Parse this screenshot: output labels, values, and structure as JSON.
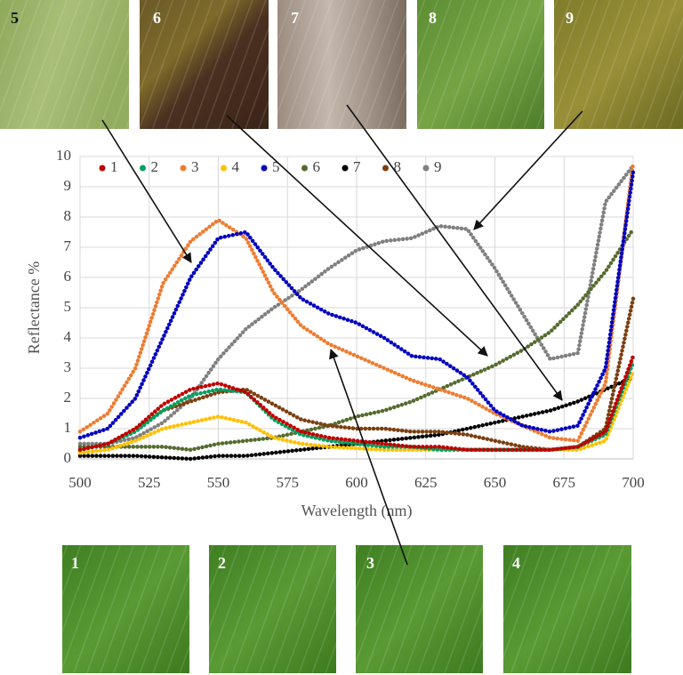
{
  "chart_data": {
    "type": "line",
    "ylabel": "Reflectance %",
    "xlabel": "Wavelength (nm)",
    "x": [
      500,
      510,
      520,
      530,
      540,
      550,
      560,
      570,
      580,
      590,
      600,
      610,
      620,
      630,
      640,
      650,
      660,
      670,
      680,
      690,
      700
    ],
    "xlim": [
      500,
      700
    ],
    "xticks": [
      500,
      525,
      550,
      575,
      600,
      625,
      650,
      675,
      700
    ],
    "ylim": [
      0,
      10
    ],
    "yticks": [
      0,
      1,
      2,
      3,
      4,
      5,
      6,
      7,
      8,
      9,
      10
    ],
    "grid": true,
    "legend": "top",
    "series": [
      {
        "name": "1",
        "color": "#c00000",
        "values": [
          0.3,
          0.5,
          1.0,
          1.8,
          2.3,
          2.5,
          2.2,
          1.4,
          0.9,
          0.7,
          0.6,
          0.5,
          0.4,
          0.4,
          0.3,
          0.3,
          0.3,
          0.3,
          0.4,
          0.9,
          3.4
        ]
      },
      {
        "name": "2",
        "color": "#00a060",
        "values": [
          0.3,
          0.5,
          0.9,
          1.6,
          2.1,
          2.3,
          2.2,
          1.3,
          0.8,
          0.6,
          0.5,
          0.4,
          0.4,
          0.3,
          0.3,
          0.3,
          0.3,
          0.3,
          0.4,
          0.8,
          3.2
        ]
      },
      {
        "name": "3",
        "color": "#ed7d31",
        "values": [
          0.9,
          1.5,
          3.0,
          5.8,
          7.2,
          7.9,
          7.3,
          5.5,
          4.4,
          3.8,
          3.4,
          3.0,
          2.6,
          2.3,
          2.0,
          1.5,
          1.1,
          0.7,
          0.6,
          2.5,
          9.8
        ]
      },
      {
        "name": "4",
        "color": "#ffc000",
        "values": [
          0.2,
          0.3,
          0.6,
          1.0,
          1.2,
          1.4,
          1.2,
          0.7,
          0.5,
          0.4,
          0.35,
          0.3,
          0.3,
          0.3,
          0.3,
          0.3,
          0.3,
          0.3,
          0.3,
          0.6,
          2.9
        ]
      },
      {
        "name": "5",
        "color": "#0000c0",
        "values": [
          0.7,
          1.0,
          2.0,
          4.0,
          6.0,
          7.3,
          7.5,
          6.3,
          5.3,
          4.8,
          4.5,
          4.0,
          3.4,
          3.3,
          2.7,
          1.6,
          1.1,
          0.9,
          1.1,
          3.0,
          9.5
        ]
      },
      {
        "name": "6",
        "color": "#556b2f",
        "values": [
          0.4,
          0.4,
          0.4,
          0.4,
          0.3,
          0.5,
          0.6,
          0.7,
          0.9,
          1.1,
          1.4,
          1.6,
          1.9,
          2.3,
          2.7,
          3.1,
          3.6,
          4.2,
          5.1,
          6.2,
          7.6
        ]
      },
      {
        "name": "7",
        "color": "#000000",
        "values": [
          0.1,
          0.1,
          0.1,
          0.05,
          0.0,
          0.1,
          0.1,
          0.2,
          0.3,
          0.4,
          0.5,
          0.6,
          0.7,
          0.8,
          1.0,
          1.2,
          1.4,
          1.6,
          1.9,
          2.3,
          2.7
        ]
      },
      {
        "name": "8",
        "color": "#7b3f10",
        "values": [
          0.3,
          0.5,
          1.0,
          1.6,
          1.9,
          2.2,
          2.3,
          1.8,
          1.3,
          1.1,
          1.0,
          1.0,
          0.9,
          0.9,
          0.8,
          0.6,
          0.4,
          0.3,
          0.4,
          1.0,
          5.3
        ]
      },
      {
        "name": "9",
        "color": "#808080",
        "values": [
          0.5,
          0.5,
          0.7,
          1.2,
          2.0,
          3.3,
          4.3,
          5.0,
          5.6,
          6.3,
          6.9,
          7.2,
          7.3,
          7.7,
          7.6,
          6.3,
          4.8,
          3.3,
          3.5,
          8.5,
          9.7
        ]
      }
    ]
  },
  "photos": {
    "top": [
      "5",
      "6",
      "7",
      "8",
      "9"
    ],
    "bottom": [
      "1",
      "2",
      "3",
      "4"
    ]
  }
}
